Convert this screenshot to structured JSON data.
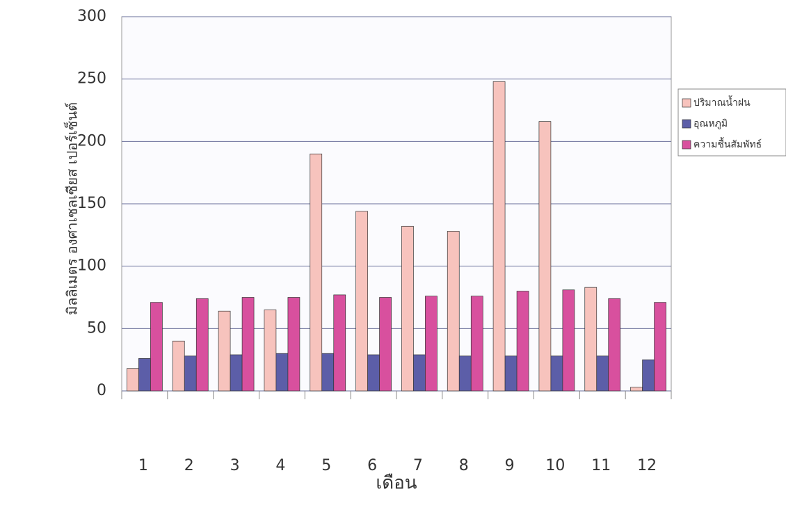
{
  "chart_data": {
    "type": "bar",
    "x_label": "เดือน",
    "y_label": "มิลลิเมตร  องศาเซลเซียส  เปอร์เซ็นต์",
    "categories": [
      "1",
      "2",
      "3",
      "4",
      "5",
      "6",
      "7",
      "8",
      "9",
      "10",
      "11",
      "12"
    ],
    "series": [
      {
        "name": "ปริมาณน้ำฝน",
        "color": "#f7c3bd",
        "values": [
          18,
          40,
          64,
          65,
          190,
          144,
          132,
          128,
          248,
          216,
          83,
          3
        ]
      },
      {
        "name": "อุณหภูมิ",
        "color": "#5c5ea8",
        "values": [
          26,
          28,
          29,
          30,
          30,
          29,
          29,
          28,
          28,
          28,
          28,
          25
        ]
      },
      {
        "name": "ความชื้นสัมพัทธ์",
        "color": "#d8509e",
        "values": [
          71,
          74,
          75,
          75,
          77,
          75,
          76,
          76,
          80,
          81,
          74,
          71
        ]
      }
    ],
    "ylim": [
      0,
      300
    ],
    "yticks": [
      0,
      50,
      100,
      150,
      200,
      250,
      300
    ],
    "grid": true,
    "legend": "right"
  }
}
